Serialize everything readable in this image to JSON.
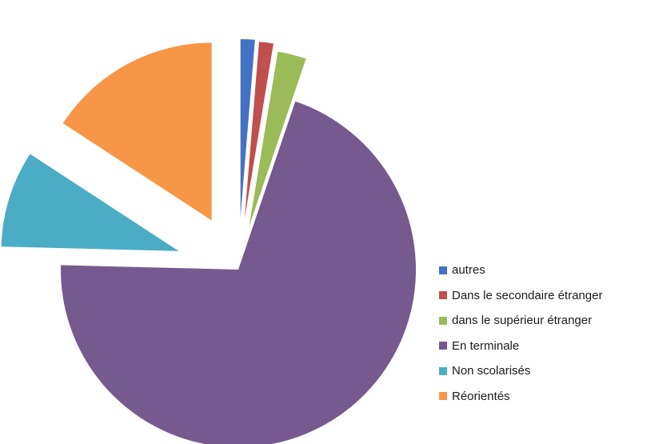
{
  "chart_data": {
    "type": "pie",
    "title": "",
    "legend_position": "right",
    "series": [
      {
        "categories": [
          "autres",
          "Dans le secondaire étranger",
          "dans le supérieur étranger",
          "En terminale",
          "Non scolarisés",
          "Réorientés"
        ],
        "values": [
          1.3,
          1.3,
          2.6,
          70.2,
          8.8,
          15.8
        ],
        "colors": [
          "#4472C4",
          "#C0504D",
          "#9BBB59",
          "#765A8F",
          "#4BACC6",
          "#F79646"
        ],
        "exploded": [
          true,
          true,
          true,
          false,
          true,
          true
        ]
      }
    ]
  }
}
